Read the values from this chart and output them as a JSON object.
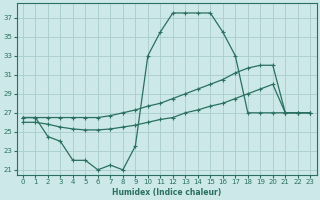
{
  "xlabel": "Humidex (Indice chaleur)",
  "ylabel": "",
  "bg_color": "#cce8e8",
  "grid_color": "#b8d8d8",
  "line_color": "#2a7060",
  "xlim": [
    -0.5,
    23.5
  ],
  "ylim": [
    20.5,
    38.5
  ],
  "xticks": [
    0,
    1,
    2,
    3,
    4,
    5,
    6,
    7,
    8,
    9,
    10,
    11,
    12,
    13,
    14,
    15,
    16,
    17,
    18,
    19,
    20,
    21,
    22,
    23
  ],
  "yticks": [
    21,
    23,
    25,
    27,
    29,
    31,
    33,
    35,
    37
  ],
  "curve_x": [
    0,
    1,
    2,
    3,
    4,
    5,
    6,
    7,
    8,
    9,
    10,
    11,
    12,
    13,
    14,
    15,
    16,
    17,
    18,
    19,
    20,
    21,
    22,
    23
  ],
  "curve_y": [
    26.5,
    26.5,
    24.5,
    24.0,
    22.0,
    22.0,
    21.0,
    21.5,
    21.0,
    23.5,
    33.0,
    35.5,
    37.5,
    37.5,
    37.5,
    37.5,
    35.5,
    33.0,
    27.0,
    27.0,
    27.0,
    27.0,
    27.0,
    27.0
  ],
  "upper_x": [
    0,
    1,
    2,
    3,
    4,
    5,
    6,
    7,
    8,
    9,
    10,
    11,
    12,
    13,
    14,
    15,
    16,
    17,
    18,
    19,
    20,
    21,
    22,
    23
  ],
  "upper_y": [
    26.5,
    26.5,
    26.5,
    26.5,
    26.5,
    26.5,
    26.5,
    26.7,
    27.0,
    27.3,
    27.7,
    28.0,
    28.5,
    29.0,
    29.5,
    30.0,
    30.5,
    31.2,
    31.7,
    32.0,
    32.0,
    27.0,
    27.0,
    27.0
  ],
  "lower_x": [
    0,
    1,
    2,
    3,
    4,
    5,
    6,
    7,
    8,
    9,
    10,
    11,
    12,
    13,
    14,
    15,
    16,
    17,
    18,
    19,
    20,
    21,
    22,
    23
  ],
  "lower_y": [
    26.0,
    26.0,
    25.8,
    25.5,
    25.3,
    25.2,
    25.2,
    25.3,
    25.5,
    25.7,
    26.0,
    26.3,
    26.5,
    27.0,
    27.3,
    27.7,
    28.0,
    28.5,
    29.0,
    29.5,
    30.0,
    27.0,
    27.0,
    27.0
  ]
}
